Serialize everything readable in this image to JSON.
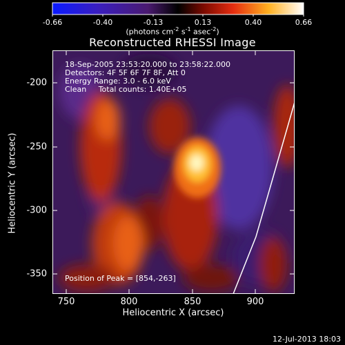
{
  "colorbar": {
    "ticks": [
      "-0.66",
      "-0.40",
      "-0.13",
      "0.13",
      "0.40",
      "0.66"
    ],
    "units_text": "(photons cm",
    "units_exp1": "-2",
    "units_mid": " s",
    "units_exp2": "-1",
    "units_end": " asec",
    "units_exp3": "-2",
    "units_close": ")"
  },
  "plot": {
    "title": "Reconstructed RHESSI Image",
    "xlabel": "Heliocentric X (arcsec)",
    "ylabel": "Heliocentric Y (arcsec)",
    "xticks": [
      "750",
      "800",
      "850",
      "900"
    ],
    "yticks": [
      "-200",
      "-250",
      "-300",
      "-350"
    ]
  },
  "info": {
    "time": "18-Sep-2005 23:53:20.000 to 23:58:22.000",
    "detectors": "Detectors: 4F 5F 6F 7F 8F, Att 0",
    "energy": "Energy Range: 3.0 - 6.0 keV",
    "method": "Clean     Total counts: 1.40E+05",
    "peak": "Position of Peak = [854,-263]"
  },
  "timestamp": "12-Jul-2013 18:03"
}
